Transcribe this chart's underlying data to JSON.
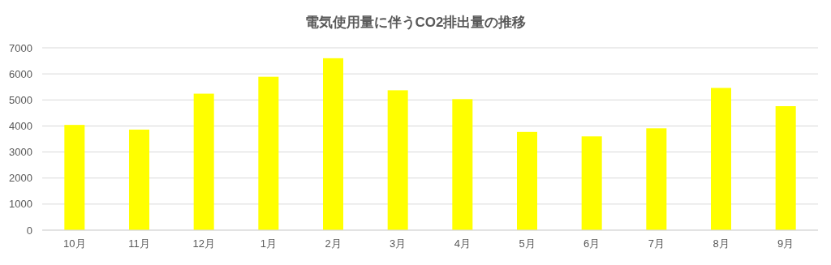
{
  "chart_data": {
    "type": "bar",
    "title": "電気使用量に伴うCO2排出量の推移",
    "categories": [
      "10月",
      "11月",
      "12月",
      "1月",
      "2月",
      "3月",
      "4月",
      "5月",
      "6月",
      "7月",
      "8月",
      "9月"
    ],
    "values": [
      4040,
      3860,
      5240,
      5890,
      6600,
      5370,
      5030,
      3770,
      3600,
      3910,
      5460,
      4760
    ],
    "color": "#ffff00",
    "ylim": [
      0,
      7000
    ],
    "yticks": [
      0,
      1000,
      2000,
      3000,
      4000,
      5000,
      6000,
      7000
    ],
    "grid": "y"
  }
}
